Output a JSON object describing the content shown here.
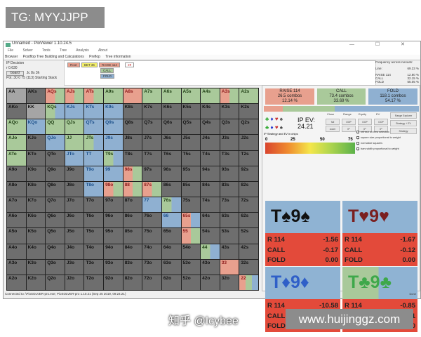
{
  "watermark_top": "TG: MYYJJPP",
  "watermark_bottom": "www.huijinggz.com",
  "watermark_zhihu": "知乎 @Icybee",
  "window": {
    "title": "Unnamed - PioViewer 1.10.24.5",
    "controls": "— ☐ ✕"
  },
  "menu": [
    "File",
    "Solver",
    "Tools",
    "Tree",
    "Analysis",
    "About"
  ],
  "tabs": [
    "Browser",
    "Postflop Tree Building and Calculations",
    "Preflop",
    "Tree information"
  ],
  "left_info": {
    "decision": "IP Decision",
    "r": "r 0.630",
    "board_button": "board",
    "board": "Jc 8s 3h",
    "pot": "Pot: 30 0 75 (113) Starting Stack"
  },
  "tree": {
    "root": "Root",
    "bet": "BET 36",
    "raise": "RAISE 114",
    "next": "3♥",
    "call": "CALL",
    "fold": "FOLD"
  },
  "freq": {
    "title": "Frequency across runouts:",
    "rows": [
      [
        "Line:",
        "69.23 %"
      ],
      [
        "RAISE 114",
        "12.80 %"
      ],
      [
        "CALL",
        "32.15 %"
      ],
      [
        "FOLD",
        "55.05 %"
      ]
    ]
  },
  "strategy": [
    {
      "name": "RAISE 114",
      "combos": "26.5 combos",
      "pct": "12.14 %",
      "value": 12.14,
      "color": "#e8a08e"
    },
    {
      "name": "CALL",
      "combos": "73.4 combos",
      "pct": "33.69 %",
      "value": 33.69,
      "color": "#a9c99a"
    },
    {
      "name": "FOLD",
      "combos": "118.1 combos",
      "pct": "54.17 %",
      "value": 54.17,
      "color": "#8fb0d1"
    }
  ],
  "controls": {
    "ev_label": "IP EV:",
    "ev_value": "24.21",
    "headers": [
      "Close",
      "Range",
      "Equity",
      "EV"
    ],
    "buttons": [
      "full",
      "OOP",
      "OOP",
      "OOP",
      "zoom",
      "IP",
      "IP",
      "IP"
    ],
    "side": [
      "Range Explorer",
      "Strategy + EV",
      "Strategy"
    ],
    "grad_label": "IP Strategy and EV in chips",
    "grad_ticks": [
      "0",
      "25",
      "50",
      "75"
    ],
    "checks": [
      "refresh on new selection",
      "square size proportional to weight",
      "normalize squares",
      "bars width proportional to weight"
    ]
  },
  "grid": [
    [
      "AA",
      "AKs",
      "AQs",
      "AJs",
      "ATs",
      "A9s",
      "A8s",
      "A7s",
      "A6s",
      "A5s",
      "A4s",
      "A3s",
      "A2s"
    ],
    [
      "AKo",
      "KK",
      "KQs",
      "KJs",
      "KTs",
      "K9s",
      "K8s",
      "K7s",
      "K6s",
      "K5s",
      "K4s",
      "K3s",
      "K2s"
    ],
    [
      "AQo",
      "KQo",
      "QQ",
      "QJs",
      "QTs",
      "Q9s",
      "Q8s",
      "Q7s",
      "Q6s",
      "Q5s",
      "Q4s",
      "Q3s",
      "Q2s"
    ],
    [
      "AJo",
      "KJo",
      "QJo",
      "JJ",
      "JTs",
      "J9s",
      "J8s",
      "J7s",
      "J6s",
      "J5s",
      "J4s",
      "J3s",
      "J2s"
    ],
    [
      "ATo",
      "KTo",
      "QTo",
      "JTo",
      "TT",
      "T9s",
      "T8s",
      "T7s",
      "T6s",
      "T5s",
      "T4s",
      "T3s",
      "T2s"
    ],
    [
      "A9o",
      "K9o",
      "Q9o",
      "J9o",
      "T9o",
      "99",
      "98s",
      "97s",
      "96s",
      "95s",
      "94s",
      "93s",
      "92s"
    ],
    [
      "A8o",
      "K8o",
      "Q8o",
      "J8o",
      "T8o",
      "98o",
      "88",
      "87s",
      "86s",
      "85s",
      "84s",
      "83s",
      "82s"
    ],
    [
      "A7o",
      "K7o",
      "Q7o",
      "J7o",
      "T7o",
      "97o",
      "87o",
      "77",
      "76s",
      "75s",
      "74s",
      "73s",
      "72s"
    ],
    [
      "A6o",
      "K6o",
      "Q6o",
      "J6o",
      "T6o",
      "96o",
      "86o",
      "76o",
      "66",
      "65s",
      "64s",
      "63s",
      "62s"
    ],
    [
      "A5o",
      "K5o",
      "Q5o",
      "J5o",
      "T5o",
      "95o",
      "85o",
      "75o",
      "65o",
      "55",
      "54s",
      "53s",
      "52s"
    ],
    [
      "A4o",
      "K4o",
      "Q4o",
      "J4o",
      "T4o",
      "94o",
      "84o",
      "74o",
      "64o",
      "54o",
      "44",
      "43s",
      "42s"
    ],
    [
      "A3o",
      "K3o",
      "Q3o",
      "J3o",
      "T3o",
      "93o",
      "83o",
      "73o",
      "63o",
      "53o",
      "43o",
      "33",
      "32s"
    ],
    [
      "A2o",
      "K2o",
      "Q2o",
      "J2o",
      "T2o",
      "92o",
      "82o",
      "72o",
      "62o",
      "52o",
      "42o",
      "32o",
      "22"
    ]
  ],
  "cell_strategy": {
    "AQs": "rc",
    "AJs": "rc",
    "ATs": "rc",
    "A9s": "c",
    "A8s": "r",
    "A7s": "c",
    "A6s": "c",
    "A5s": "c",
    "A4s": "c",
    "A3s": "rc",
    "A2s": "c",
    "KQs": "cf",
    "KJs": "f",
    "KTs": "f",
    "K9s": "f",
    "AQo": "c",
    "KQo": "f",
    "QQ": "c",
    "QJs": "c",
    "QTs": "f",
    "Q9s": "f",
    "AJo": "c",
    "QJo": "f",
    "JJ": "c",
    "JTs": "cf",
    "J9s": "f",
    "ATo": "c",
    "JTo": "f",
    "TT": "f",
    "T9s": "cf",
    "T9o": "f",
    "99": "f",
    "98s": "rc",
    "T8o": "f",
    "98o": "rc",
    "88": "rc",
    "87s": "rc",
    "77": "f",
    "76s": "cf",
    "66": "f",
    "65s": "rf",
    "55": "rc",
    "44": "cf",
    "33": "r",
    "22": "rcf"
  },
  "colors": {
    "r": "#e8a08e",
    "c": "#a9c99a",
    "f": "#8fb0d1",
    "fold_text": "#1b4f8a",
    "raise_text": "#8b1a1a"
  },
  "cards": [
    {
      "hand": "T♠9♠",
      "color": "#111111",
      "rows": [
        [
          "R 114",
          "-1.56"
        ],
        [
          "CALL",
          "-0.17"
        ],
        [
          "FOLD",
          "0.00"
        ]
      ]
    },
    {
      "hand": "T♥9♥",
      "color": "#7a1f1f",
      "rows": [
        [
          "R 114",
          "-1.67"
        ],
        [
          "CALL",
          "-0.12"
        ],
        [
          "FOLD",
          "0.00"
        ]
      ]
    },
    {
      "hand": "T♦9♦",
      "color": "#2f5fc8",
      "rows": [
        [
          "R 114",
          "-10.58"
        ],
        [
          "CALL",
          "-7.49"
        ],
        [
          "FOLD",
          "0.00"
        ]
      ]
    },
    {
      "hand": "T♣9♣",
      "color": "#3ea84a",
      "rows": [
        [
          "R 114",
          "-0.85"
        ],
        [
          "CALL",
          "-0.01"
        ],
        [
          "FOLD",
          "0.00"
        ]
      ]
    }
  ],
  "status": "Connected to: \\PioSOLVER-pro.exe; PioSOLVER-pro 1.10.21 (Sep 25 2019, 09:24:21)",
  "status_right": "Done"
}
